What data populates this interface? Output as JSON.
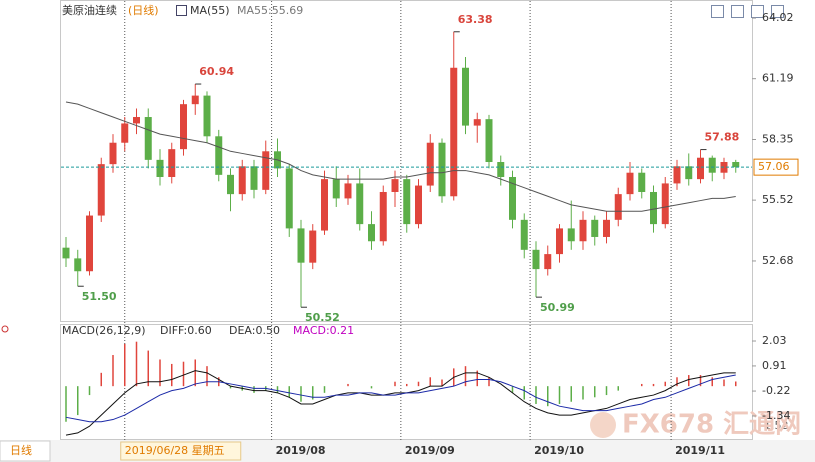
{
  "header": {
    "symbol": "美原油连续",
    "period": "(日线)",
    "ma_name": "MA(55)",
    "ma_value": "MA55:55.69"
  },
  "chart_data": [
    {
      "type": "candlestick",
      "open": [
        53.3,
        52.8,
        52.2,
        54.8,
        57.2,
        58.2,
        59.1,
        59.4,
        57.4,
        56.6,
        57.9,
        60.0,
        60.4,
        58.5,
        56.7,
        55.8,
        57.1,
        56.0,
        57.8,
        57.0,
        54.2,
        52.6,
        54.1,
        56.5,
        55.6,
        56.3,
        54.4,
        53.6,
        55.9,
        56.5,
        54.4,
        56.2,
        58.2,
        55.7,
        61.7,
        59.0,
        59.3,
        57.3,
        56.6,
        54.6,
        53.2,
        52.3,
        53.0,
        54.2,
        53.6,
        54.6,
        53.8,
        54.6,
        55.8,
        56.8,
        55.9,
        54.4,
        56.3,
        57.1,
        56.5,
        57.5,
        56.8,
        57.3
      ],
      "high": [
        53.8,
        53.2,
        55.0,
        57.5,
        58.6,
        59.4,
        59.8,
        59.8,
        57.9,
        58.2,
        60.2,
        60.94,
        60.6,
        58.8,
        57.0,
        57.4,
        57.4,
        58.3,
        58.4,
        57.2,
        54.6,
        54.4,
        56.9,
        57.1,
        56.7,
        57.0,
        55.0,
        56.2,
        56.9,
        56.7,
        56.5,
        58.6,
        58.4,
        63.38,
        62.2,
        59.6,
        59.5,
        57.6,
        56.9,
        54.9,
        53.6,
        53.4,
        54.4,
        55.5,
        55.0,
        54.8,
        55.0,
        56.1,
        57.3,
        57.0,
        56.2,
        56.6,
        57.4,
        57.7,
        57.88,
        57.6,
        57.5,
        57.4
      ],
      "low": [
        52.4,
        51.5,
        52.0,
        54.5,
        56.8,
        57.8,
        58.6,
        57.0,
        56.2,
        56.3,
        57.6,
        59.5,
        58.2,
        56.4,
        55.0,
        55.5,
        55.6,
        55.8,
        56.6,
        53.8,
        50.52,
        52.3,
        53.9,
        55.2,
        55.3,
        54.1,
        53.2,
        53.4,
        55.2,
        54.0,
        54.2,
        55.9,
        55.4,
        55.5,
        58.6,
        58.2,
        57.0,
        56.2,
        54.2,
        52.8,
        50.99,
        52.0,
        52.6,
        53.2,
        53.2,
        53.4,
        53.5,
        54.3,
        55.5,
        55.6,
        54.0,
        54.2,
        56.0,
        56.2,
        56.3,
        56.4,
        56.5,
        56.8
      ],
      "close": [
        52.8,
        52.2,
        54.8,
        57.2,
        58.2,
        59.1,
        59.4,
        57.4,
        56.6,
        57.9,
        60.0,
        60.4,
        58.5,
        56.7,
        55.8,
        57.1,
        56.0,
        57.8,
        57.0,
        54.2,
        52.6,
        54.1,
        56.5,
        55.6,
        56.3,
        54.4,
        53.6,
        55.9,
        56.5,
        54.4,
        56.2,
        58.2,
        55.7,
        61.7,
        59.0,
        59.3,
        57.3,
        56.6,
        54.6,
        53.2,
        52.3,
        53.0,
        54.2,
        53.6,
        54.6,
        53.8,
        54.6,
        55.8,
        56.8,
        55.9,
        54.4,
        56.3,
        57.1,
        56.5,
        57.5,
        56.8,
        57.3,
        57.06
      ],
      "colors": {
        "up": "#e0453c",
        "down": "#5cae48"
      },
      "ma": {
        "color": "#555555",
        "values": [
          60.1,
          60.0,
          59.8,
          59.6,
          59.4,
          59.2,
          59.0,
          58.8,
          58.6,
          58.5,
          58.4,
          58.3,
          58.2,
          58.0,
          57.8,
          57.7,
          57.6,
          57.5,
          57.4,
          57.2,
          56.9,
          56.7,
          56.6,
          56.5,
          56.5,
          56.5,
          56.5,
          56.5,
          56.6,
          56.6,
          56.7,
          56.8,
          56.8,
          56.9,
          56.9,
          56.8,
          56.7,
          56.5,
          56.3,
          56.1,
          55.9,
          55.7,
          55.5,
          55.3,
          55.2,
          55.1,
          55.0,
          55.0,
          55.0,
          55.0,
          55.1,
          55.2,
          55.3,
          55.4,
          55.5,
          55.6,
          55.6,
          55.69
        ]
      },
      "ylim": [
        49.83,
        64.49
      ],
      "yticks": [
        64.02,
        61.19,
        58.35,
        55.52,
        52.68
      ],
      "last_price": 57.06,
      "annotations": [
        {
          "index": 11,
          "value": 60.94,
          "label": "60.94"
        },
        {
          "index": 33,
          "value": 63.38,
          "label": "63.38"
        },
        {
          "index": 54,
          "value": 57.88,
          "label": "57.88"
        },
        {
          "index": 1,
          "value": 51.5,
          "label": "51.50"
        },
        {
          "index": 20,
          "value": 50.52,
          "label": "50.52"
        },
        {
          "index": 40,
          "value": 50.99,
          "label": "50.99"
        }
      ]
    },
    {
      "type": "macd",
      "title": "MACD(26,12,9)",
      "diff_label": "DIFF:0.60",
      "dea_label": "DEA:0.50",
      "macd_label": "MACD:0.21",
      "histogram": [
        -1.6,
        -1.3,
        -0.4,
        0.6,
        1.4,
        1.9,
        2.0,
        1.6,
        1.2,
        1.0,
        1.1,
        1.2,
        0.9,
        0.4,
        -0.1,
        -0.2,
        -0.3,
        -0.2,
        -0.3,
        -0.5,
        -0.7,
        -0.6,
        -0.3,
        0.0,
        0.1,
        0.0,
        -0.1,
        0.0,
        0.2,
        0.1,
        0.2,
        0.4,
        0.3,
        0.8,
        0.9,
        0.7,
        0.4,
        0.0,
        -0.3,
        -0.6,
        -0.8,
        -0.9,
        -0.8,
        -0.7,
        -0.6,
        -0.5,
        -0.4,
        -0.2,
        0.0,
        0.1,
        0.1,
        0.2,
        0.4,
        0.5,
        0.5,
        0.4,
        0.3,
        0.21
      ],
      "diff": {
        "color": "#111111",
        "values": [
          -2.2,
          -2.1,
          -1.8,
          -1.3,
          -0.8,
          -0.3,
          0.1,
          0.2,
          0.2,
          0.3,
          0.5,
          0.7,
          0.6,
          0.3,
          0.0,
          -0.1,
          -0.2,
          -0.2,
          -0.3,
          -0.5,
          -0.8,
          -0.8,
          -0.6,
          -0.4,
          -0.3,
          -0.3,
          -0.4,
          -0.4,
          -0.3,
          -0.3,
          -0.2,
          0.0,
          0.0,
          0.4,
          0.6,
          0.6,
          0.4,
          0.1,
          -0.3,
          -0.7,
          -1.0,
          -1.2,
          -1.3,
          -1.3,
          -1.2,
          -1.1,
          -1.0,
          -0.8,
          -0.6,
          -0.5,
          -0.4,
          -0.2,
          0.1,
          0.3,
          0.4,
          0.5,
          0.6,
          0.6
        ]
      },
      "dea": {
        "color": "#1c2aa8",
        "values": [
          -1.4,
          -1.5,
          -1.6,
          -1.6,
          -1.5,
          -1.3,
          -1.0,
          -0.7,
          -0.4,
          -0.2,
          -0.1,
          0.1,
          0.2,
          0.2,
          0.1,
          0.0,
          -0.1,
          -0.1,
          -0.2,
          -0.3,
          -0.4,
          -0.5,
          -0.5,
          -0.4,
          -0.4,
          -0.3,
          -0.3,
          -0.4,
          -0.4,
          -0.3,
          -0.3,
          -0.2,
          -0.1,
          0.0,
          0.2,
          0.3,
          0.3,
          0.2,
          0.0,
          -0.2,
          -0.5,
          -0.7,
          -0.9,
          -1.0,
          -1.1,
          -1.1,
          -1.1,
          -1.0,
          -0.9,
          -0.8,
          -0.6,
          -0.5,
          -0.3,
          -0.1,
          0.1,
          0.3,
          0.4,
          0.5
        ]
      },
      "ylim": [
        -2.42,
        2.75
      ],
      "yticks": [
        2.03,
        0.91,
        -0.22,
        -1.34
      ],
      "min_label": "-1.52"
    }
  ],
  "x_axis": {
    "months": [
      {
        "index": 18,
        "label": "2019/08"
      },
      {
        "index": 29,
        "label": "2019/09"
      },
      {
        "index": 40,
        "label": "2019/10"
      },
      {
        "index": 52,
        "label": "2019/11"
      }
    ],
    "cursor": {
      "index": 5,
      "label": "2019/06/28 星期五"
    },
    "period_tab": "日线"
  },
  "watermark": "FX678 汇通网"
}
